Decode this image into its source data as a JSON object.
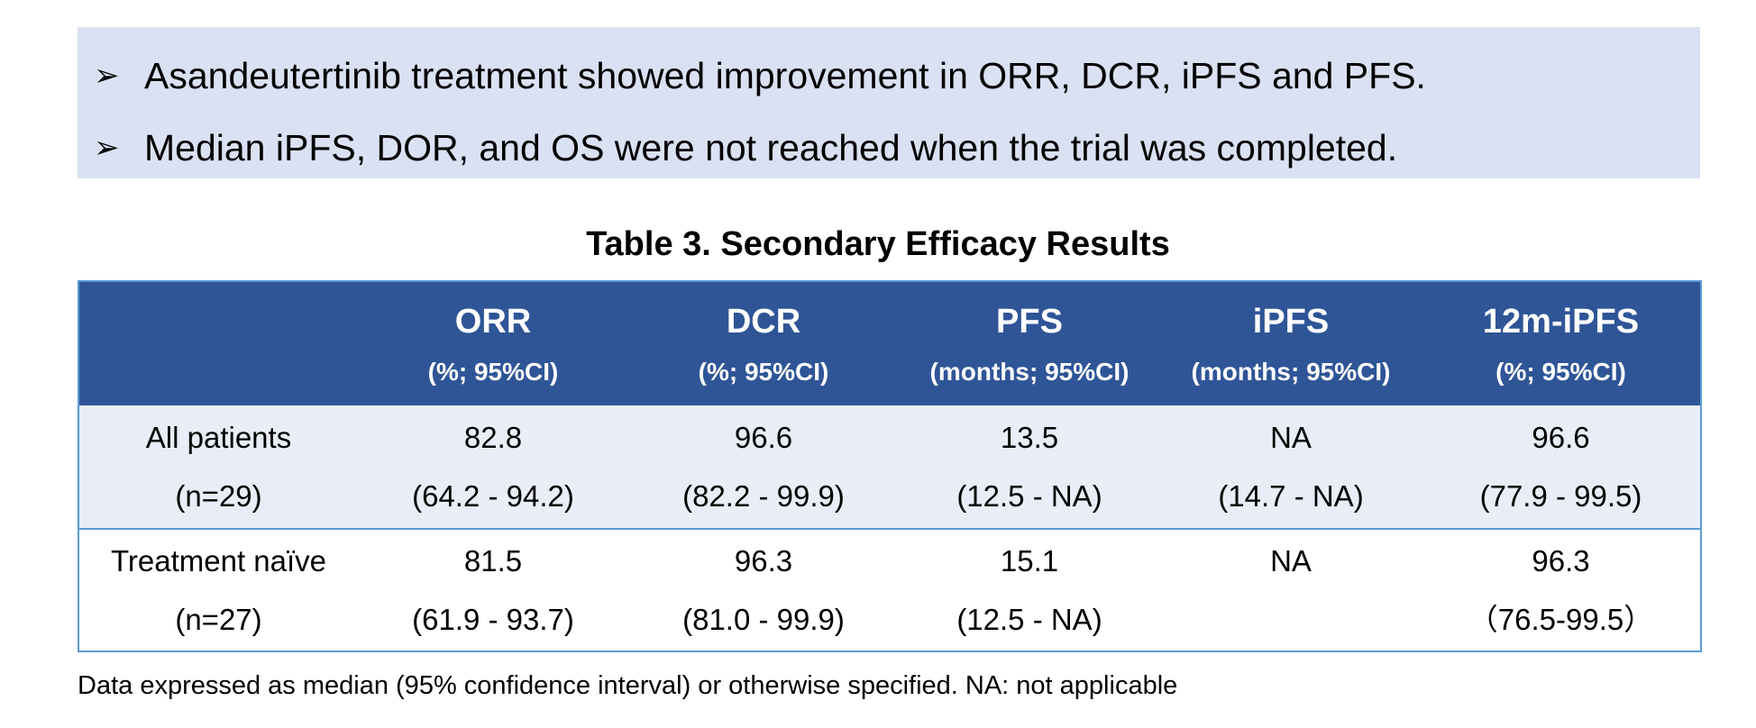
{
  "bullets": [
    {
      "marker": "➢",
      "text": "Asandeutertinib treatment showed improvement in ORR, DCR, iPFS and PFS."
    },
    {
      "marker": "➢",
      "text": "Median iPFS, DOR, and OS were not reached when the trial was completed."
    }
  ],
  "table": {
    "title": "Table 3. Secondary Efficacy Results",
    "columns": [
      {
        "name": "",
        "unit": ""
      },
      {
        "name": "ORR",
        "unit": "(%; 95%CI)"
      },
      {
        "name": "DCR",
        "unit": "(%; 95%CI)"
      },
      {
        "name": "PFS",
        "unit": "(months; 95%CI)"
      },
      {
        "name": "iPFS",
        "unit": "(months; 95%CI)"
      },
      {
        "name": "12m-iPFS",
        "unit": "(%; 95%CI)"
      }
    ],
    "rows": [
      {
        "label": "All patients",
        "n": "(n=29)",
        "cells": [
          {
            "value": "82.8",
            "ci": "(64.2 - 94.2)"
          },
          {
            "value": "96.6",
            "ci": "(82.2 - 99.9)"
          },
          {
            "value": "13.5",
            "ci": "(12.5 - NA)"
          },
          {
            "value": "NA",
            "ci": "(14.7 - NA)"
          },
          {
            "value": "96.6",
            "ci": "(77.9 - 99.5)"
          }
        ]
      },
      {
        "label": "Treatment naïve",
        "n": "(n=27)",
        "cells": [
          {
            "value": "81.5",
            "ci": "(61.9 - 93.7)"
          },
          {
            "value": "96.3",
            "ci": "(81.0 - 99.9)"
          },
          {
            "value": "15.1",
            "ci": "(12.5 - NA)"
          },
          {
            "value": "NA",
            "ci": ""
          },
          {
            "value": "96.3",
            "ci": "（76.5-99.5）"
          }
        ]
      }
    ]
  },
  "footnote": "Data expressed as median (95% confidence interval) or otherwise specified. NA: not applicable"
}
